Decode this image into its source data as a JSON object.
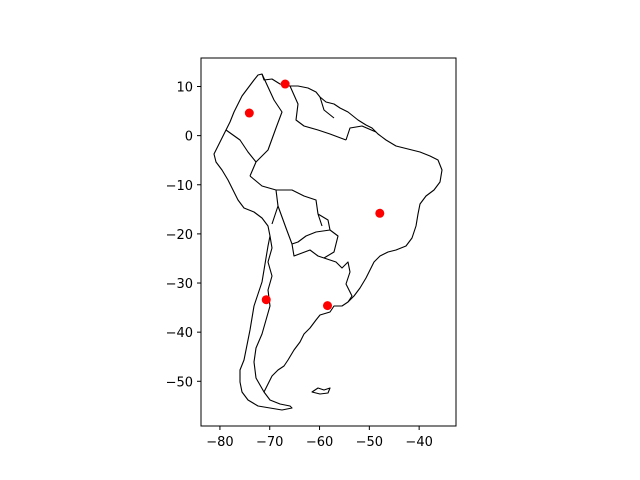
{
  "chart_data": {
    "type": "scatter",
    "title": "",
    "xlabel": "",
    "ylabel": "",
    "xlim": [
      -83.8,
      -32.6
    ],
    "ylim": [
      -59.1,
      15.8
    ],
    "xticks": [
      -80,
      -70,
      -60,
      -50,
      -40
    ],
    "yticks": [
      10,
      0,
      -10,
      -20,
      -30,
      -40,
      -50
    ],
    "xtick_labels": [
      "−80",
      "−70",
      "−60",
      "−50",
      "−40"
    ],
    "ytick_labels": [
      "10",
      "0",
      "−10",
      "−20",
      "−30",
      "−40",
      "−50"
    ],
    "grid": false,
    "legend": "none",
    "basemap": "South America country outlines",
    "outline_color": "#000000",
    "point_color": "#ff0000",
    "points": [
      {
        "x": -66.9,
        "y": 10.5
      },
      {
        "x": -74.1,
        "y": 4.6
      },
      {
        "x": -47.9,
        "y": -15.8
      },
      {
        "x": -70.7,
        "y": -33.4
      },
      {
        "x": -58.4,
        "y": -34.6
      }
    ]
  }
}
